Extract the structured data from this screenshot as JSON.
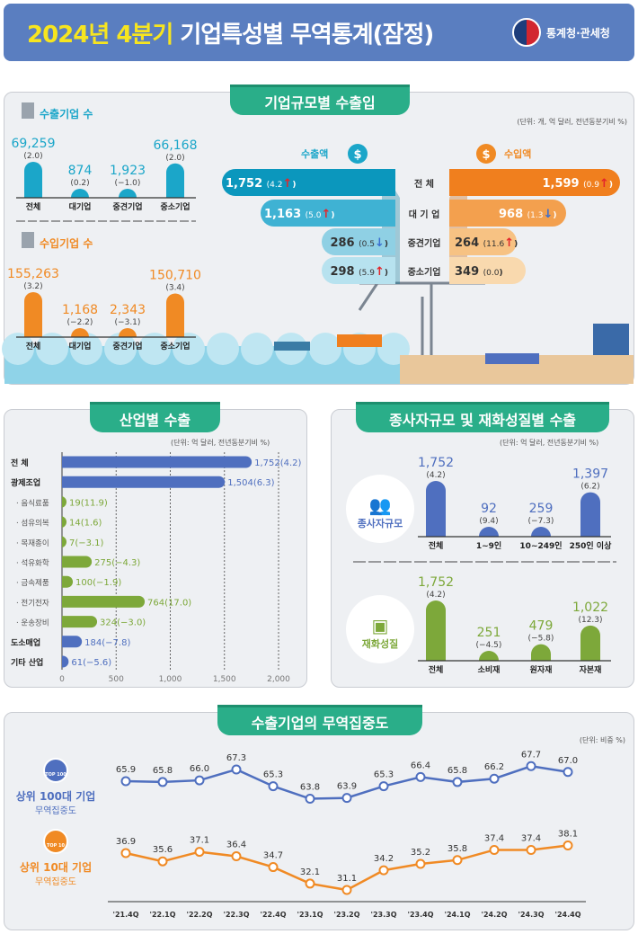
{
  "header": {
    "title_highlight": "2024년 4분기",
    "title_rest": " 기업특성별 무역통계(잠정)",
    "logo_text": "통계청·관세청"
  },
  "panel1": {
    "title": "기업규모별 수출입",
    "unit": "(단위: 개, 억 달러, 전년동분기비 %)",
    "export_firms_title": "수출기업 수",
    "import_firms_title": "수입기업 수",
    "export_amount_label": "수출액",
    "import_amount_label": "수입액",
    "row_labels": [
      "전      체",
      "대 기 업",
      "중견기업",
      "중소기업"
    ]
  },
  "panel2": {
    "title": "산업별 수출",
    "unit": "(단위: 억 달러, 전년동분기비 %)"
  },
  "panel3": {
    "title": "종사자규모 및 재화성질별 수출",
    "unit": "(단위: 억 달러, 전년동분기비 %)",
    "employee_label": "종사자규모",
    "goods_label": "재화성질"
  },
  "panel4": {
    "title": "수출기업의 무역집중도",
    "unit": "(단위: 비중 %)",
    "top100": {
      "badge": "TOP 100",
      "name": "상위 100대 기업",
      "sub": "무역집중도"
    },
    "top10": {
      "badge": "TOP 10",
      "name": "상위 10대 기업",
      "sub": "무역집중도"
    }
  },
  "colors": {
    "export": "#1ba6c9",
    "import": "#f08a24",
    "blue": "#4f6fbf",
    "green": "#7da83a",
    "green_title": "#2aae89",
    "up": "#e3262b",
    "down": "#3b6fd0"
  },
  "chart_data": [
    {
      "type": "bar",
      "title": "수출기업 수",
      "categories": [
        "전체",
        "대기업",
        "중견기업",
        "중소기업"
      ],
      "values": [
        69259,
        874,
        1923,
        66168
      ],
      "changes": [
        2.0,
        0.2,
        -1.0,
        2.0
      ]
    },
    {
      "type": "bar",
      "title": "수입기업 수",
      "categories": [
        "전체",
        "대기업",
        "중견기업",
        "중소기업"
      ],
      "values": [
        155263,
        1168,
        2343,
        150710
      ],
      "changes": [
        3.2,
        -2.2,
        -3.1,
        3.4
      ]
    },
    {
      "type": "bar",
      "title": "수출액",
      "categories": [
        "전체",
        "대기업",
        "중견기업",
        "중소기업"
      ],
      "values": [
        1752,
        1163,
        286,
        298
      ],
      "changes": [
        4.2,
        5.0,
        0.5,
        5.9
      ],
      "directions": [
        "up",
        "up",
        "down",
        "up"
      ]
    },
    {
      "type": "bar",
      "title": "수입액",
      "categories": [
        "전체",
        "대기업",
        "중견기업",
        "중소기업"
      ],
      "values": [
        1599,
        968,
        264,
        349
      ],
      "changes": [
        0.9,
        1.3,
        11.6,
        0.0
      ],
      "directions": [
        "up",
        "down",
        "up",
        "none"
      ]
    },
    {
      "type": "bar",
      "title": "산업별 수출",
      "orientation": "horizontal",
      "categories": [
        "전   체",
        "광제조업",
        "· 음식료품",
        "· 섬유의복",
        "· 목재종이",
        "· 석유화학",
        "· 금속제품",
        "· 전기전자",
        "· 운송장비",
        "도소매업",
        "기타 산업"
      ],
      "levels": [
        "main",
        "main",
        "sub",
        "sub",
        "sub",
        "sub",
        "sub",
        "sub",
        "sub",
        "main",
        "main"
      ],
      "values": [
        1752,
        1504,
        19,
        14,
        7,
        275,
        100,
        764,
        324,
        184,
        61
      ],
      "changes": [
        4.2,
        6.3,
        11.9,
        1.6,
        -3.1,
        -4.3,
        -1.9,
        17.0,
        -3.0,
        -7.8,
        -5.6
      ],
      "xlim": [
        0,
        2000
      ],
      "xticks": [
        "0",
        "500",
        "1,000",
        "1,500",
        "2,000"
      ],
      "grid": true
    },
    {
      "type": "bar",
      "title": "종사자규모",
      "categories": [
        "전체",
        "1~9인",
        "10~249인",
        "250인 이상"
      ],
      "values": [
        1752,
        92,
        259,
        1397
      ],
      "changes": [
        4.2,
        9.4,
        -7.3,
        6.2
      ]
    },
    {
      "type": "bar",
      "title": "재화성질",
      "categories": [
        "전체",
        "소비재",
        "원자재",
        "자본재"
      ],
      "values": [
        1752,
        251,
        479,
        1022
      ],
      "changes": [
        4.2,
        -4.5,
        -5.8,
        12.3
      ]
    },
    {
      "type": "line",
      "title": "수출기업의 무역집중도",
      "x": [
        "'21.4Q",
        "'22.1Q",
        "'22.2Q",
        "'22.3Q",
        "'22.4Q",
        "'23.1Q",
        "'23.2Q",
        "'23.3Q",
        "'23.4Q",
        "'24.1Q",
        "'24.2Q",
        "'24.3Q",
        "'24.4Q"
      ],
      "series": [
        {
          "name": "상위 100대 기업 무역집중도",
          "values": [
            65.9,
            65.8,
            66.0,
            67.3,
            65.3,
            63.8,
            63.9,
            65.3,
            66.4,
            65.8,
            66.2,
            67.7,
            67.0
          ]
        },
        {
          "name": "상위 10대 기업 무역집중도",
          "values": [
            36.9,
            35.6,
            37.1,
            36.4,
            34.7,
            32.1,
            31.1,
            34.2,
            35.2,
            35.8,
            37.4,
            37.4,
            38.1
          ]
        }
      ]
    }
  ]
}
